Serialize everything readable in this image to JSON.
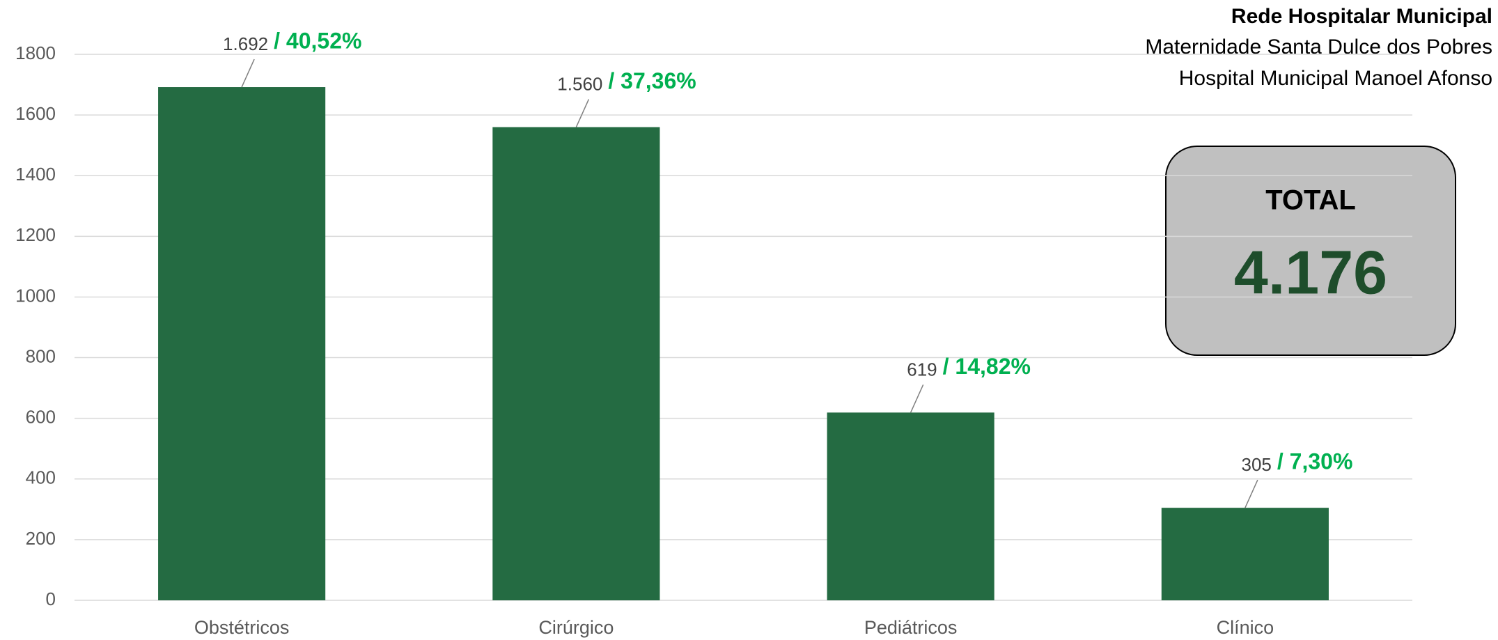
{
  "chart_data": {
    "type": "bar",
    "header": [
      "Rede Hospitalar Municipal",
      "Maternidade Santa Dulce dos Pobres",
      "Hospital Municipal Manoel Afonso"
    ],
    "categories": [
      "Obstétricos",
      "Cirúrgico",
      "Pediátricos",
      "Clínico"
    ],
    "values": [
      1692,
      1560,
      619,
      305
    ],
    "value_labels": [
      "1.692",
      "1.560",
      "619",
      "305"
    ],
    "shares": [
      40.52,
      37.36,
      14.82,
      7.3
    ],
    "share_labels": [
      "/ 40,52%",
      "/ 37,36%",
      "/ 14,82%",
      "/ 7,30%"
    ],
    "color": "#246b42",
    "ylim": [
      0,
      1800
    ],
    "yticks": [
      0,
      200,
      400,
      600,
      800,
      1000,
      1200,
      1400,
      1600,
      1800
    ],
    "grid": true,
    "total": {
      "label": "TOTAL",
      "value": 4176,
      "value_label": "4.176"
    }
  }
}
